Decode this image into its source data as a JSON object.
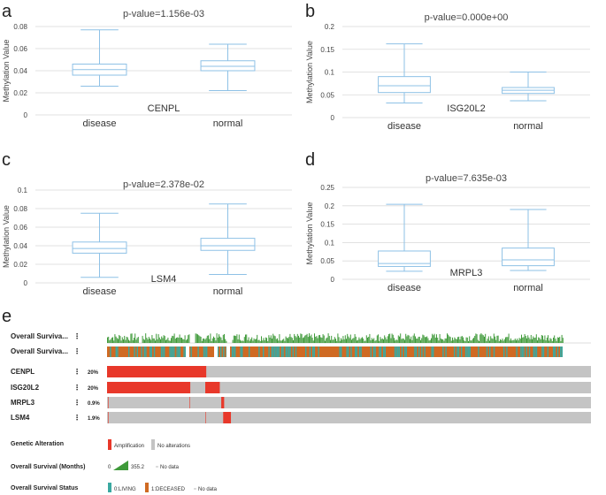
{
  "chart_data": [
    {
      "type": "box",
      "panel": "a",
      "title": "p-value=1.156e-03",
      "gene": "CENPL",
      "ylabel": "Methylation Value",
      "ylim": [
        0,
        0.08
      ],
      "yticks": [
        0,
        0.02,
        0.04,
        0.06,
        0.08
      ],
      "ytick_labels": [
        "0",
        "0.02",
        "0.04",
        "0.06",
        "0.08"
      ],
      "categories": [
        "disease",
        "normal"
      ],
      "boxes": [
        {
          "min": 0.026,
          "q1": 0.036,
          "median": 0.041,
          "q3": 0.046,
          "max": 0.077
        },
        {
          "min": 0.022,
          "q1": 0.04,
          "median": 0.044,
          "q3": 0.049,
          "max": 0.064
        }
      ]
    },
    {
      "type": "box",
      "panel": "b",
      "title": "p-value=0.000e+00",
      "gene": "ISG20L2",
      "ylabel": "Methylation Value",
      "ylim": [
        0,
        0.2
      ],
      "yticks": [
        0,
        0.05,
        0.1,
        0.15,
        0.2
      ],
      "ytick_labels": [
        "0",
        "0.05",
        "0.1",
        "0.15",
        "0.2"
      ],
      "categories": [
        "disease",
        "normal"
      ],
      "boxes": [
        {
          "min": 0.032,
          "q1": 0.055,
          "median": 0.07,
          "q3": 0.09,
          "max": 0.162
        },
        {
          "min": 0.037,
          "q1": 0.053,
          "median": 0.06,
          "q3": 0.066,
          "max": 0.1
        }
      ]
    },
    {
      "type": "box",
      "panel": "c",
      "title": "p-value=2.378e-02",
      "gene": "LSM4",
      "ylabel": "Methylation Value",
      "ylim": [
        0,
        0.1
      ],
      "yticks": [
        0,
        0.02,
        0.04,
        0.06,
        0.08,
        0.1
      ],
      "ytick_labels": [
        "0",
        "0.02",
        "0.04",
        "0.06",
        "0.08",
        "0.1"
      ],
      "categories": [
        "disease",
        "normal"
      ],
      "boxes": [
        {
          "min": 0.006,
          "q1": 0.032,
          "median": 0.037,
          "q3": 0.044,
          "max": 0.075
        },
        {
          "min": 0.009,
          "q1": 0.035,
          "median": 0.04,
          "q3": 0.048,
          "max": 0.085
        }
      ]
    },
    {
      "type": "box",
      "panel": "d",
      "title": "p-value=7.635e-03",
      "gene": "MRPL3",
      "ylabel": "Methylation Value",
      "ylim": [
        0,
        0.25
      ],
      "yticks": [
        0,
        0.05,
        0.1,
        0.15,
        0.2,
        0.25
      ],
      "ytick_labels": [
        "0",
        "0.05",
        "0.1",
        "0.15",
        "0.2",
        "0.25"
      ],
      "categories": [
        "disease",
        "normal"
      ],
      "boxes": [
        {
          "min": 0.022,
          "q1": 0.035,
          "median": 0.043,
          "q3": 0.077,
          "max": 0.204
        },
        {
          "min": 0.024,
          "q1": 0.037,
          "median": 0.053,
          "q3": 0.085,
          "max": 0.19
        }
      ]
    },
    {
      "type": "oncoprint",
      "panel": "e",
      "tracks": [
        {
          "label": "Overall Surviva...",
          "kind": "months"
        },
        {
          "label": "Overall Surviva...",
          "kind": "status"
        }
      ],
      "genes": [
        {
          "name": "CENPL",
          "pct": "20%",
          "amp_segments": [
            [
              0.0,
              0.205
            ]
          ]
        },
        {
          "name": "ISG20L2",
          "pct": "20%",
          "amp_segments": [
            [
              0.0,
              0.172
            ],
            [
              0.203,
              0.233
            ]
          ]
        },
        {
          "name": "MRPL3",
          "pct": "0.9%",
          "amp_segments": [
            [
              0.236,
              0.242
            ]
          ]
        },
        {
          "name": "LSM4",
          "pct": "1.9%",
          "amp_segments": [
            [
              0.24,
              0.256
            ]
          ]
        }
      ],
      "legend": {
        "genetic_alteration": {
          "title": "Genetic Alteration",
          "items": [
            "Amplification",
            "No alterations"
          ]
        },
        "survival_months": {
          "title": "Overall Survival (Months)",
          "min": "0",
          "max": "355.2",
          "nodata": "No data"
        },
        "survival_status": {
          "title": "Overall Survival Status",
          "items": [
            "0:LIVING",
            "1:DECEASED"
          ],
          "nodata": "No data"
        }
      },
      "colors": {
        "amp": "#e8382a",
        "none": "#c4c4c4",
        "months": "#3f9a3a",
        "living": "#3aa9a1",
        "deceased": "#cf6a23"
      }
    }
  ]
}
